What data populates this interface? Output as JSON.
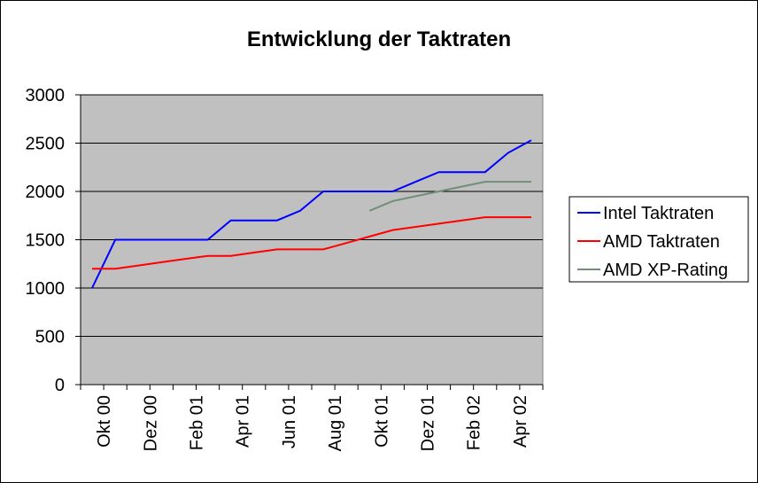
{
  "chart_data": {
    "type": "line",
    "title": "Entwicklung der Taktraten",
    "xlabel": "",
    "ylabel": "",
    "ylim": [
      0,
      3000
    ],
    "yticks": [
      0,
      500,
      1000,
      1500,
      2000,
      2500,
      3000
    ],
    "x_tick_labels": [
      "Okt 00",
      "Dez 00",
      "Feb 01",
      "Apr 01",
      "Jun 01",
      "Aug 01",
      "Okt 01",
      "Dez 01",
      "Feb 02",
      "Apr 02"
    ],
    "x_months": [
      "2000-10",
      "2000-11",
      "2000-12",
      "2001-01",
      "2001-02",
      "2001-03",
      "2001-04",
      "2001-05",
      "2001-06",
      "2001-07",
      "2001-08",
      "2001-09",
      "2001-10",
      "2001-11",
      "2001-12",
      "2002-01",
      "2002-02",
      "2002-03",
      "2002-04",
      "2002-05"
    ],
    "grid": true,
    "plot_background": "#c0c0c0",
    "legend_position": "right",
    "series": [
      {
        "name": "Intel Taktraten",
        "color": "#0000ff",
        "values": [
          1000,
          1500,
          1500,
          1500,
          1500,
          1500,
          1700,
          1700,
          1700,
          1800,
          2000,
          2000,
          2000,
          2000,
          2100,
          2200,
          2200,
          2200,
          2400,
          2530
        ]
      },
      {
        "name": "AMD Taktraten",
        "color": "#ff0000",
        "values": [
          1200,
          1200,
          1233,
          1267,
          1300,
          1333,
          1333,
          1367,
          1400,
          1400,
          1400,
          1466,
          1533,
          1600,
          1633,
          1666,
          1700,
          1733,
          1733,
          1733
        ]
      },
      {
        "name": "AMD XP-Rating",
        "color": "#6f8f78",
        "values": [
          null,
          null,
          null,
          null,
          null,
          null,
          null,
          null,
          null,
          null,
          null,
          null,
          1800,
          1900,
          1950,
          2000,
          2050,
          2100,
          2100,
          2100
        ]
      }
    ]
  }
}
